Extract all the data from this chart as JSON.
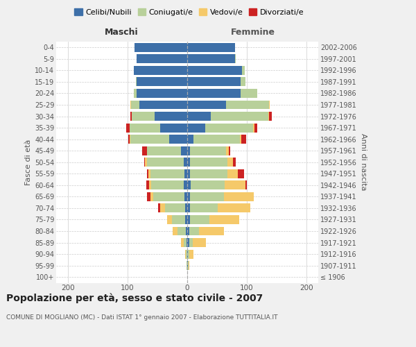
{
  "age_groups": [
    "100+",
    "95-99",
    "90-94",
    "85-89",
    "80-84",
    "75-79",
    "70-74",
    "65-69",
    "60-64",
    "55-59",
    "50-54",
    "45-49",
    "40-44",
    "35-39",
    "30-34",
    "25-29",
    "20-24",
    "15-19",
    "10-14",
    "5-9",
    "0-4"
  ],
  "birth_years": [
    "≤ 1906",
    "1907-1911",
    "1912-1916",
    "1917-1921",
    "1922-1926",
    "1927-1931",
    "1932-1936",
    "1937-1941",
    "1942-1946",
    "1947-1951",
    "1952-1956",
    "1957-1961",
    "1962-1966",
    "1967-1971",
    "1972-1976",
    "1977-1981",
    "1982-1986",
    "1987-1991",
    "1992-1996",
    "1997-2001",
    "2002-2006"
  ],
  "males_celibe": [
    0,
    0,
    0,
    1,
    2,
    3,
    4,
    5,
    6,
    5,
    6,
    10,
    30,
    45,
    55,
    80,
    85,
    85,
    90,
    85,
    88
  ],
  "males_coniug": [
    0,
    1,
    2,
    5,
    14,
    23,
    33,
    52,
    55,
    57,
    62,
    58,
    65,
    52,
    38,
    14,
    5,
    1,
    0,
    0,
    0
  ],
  "males_vedovo": [
    0,
    0,
    1,
    5,
    8,
    8,
    8,
    5,
    3,
    3,
    3,
    0,
    2,
    0,
    0,
    1,
    0,
    0,
    0,
    0,
    0
  ],
  "males_divorzio": [
    0,
    0,
    0,
    0,
    0,
    0,
    4,
    5,
    5,
    2,
    1,
    8,
    2,
    5,
    2,
    1,
    0,
    0,
    0,
    0,
    0
  ],
  "fem_nubile": [
    0,
    1,
    1,
    3,
    4,
    5,
    5,
    5,
    6,
    5,
    5,
    5,
    10,
    30,
    40,
    65,
    90,
    90,
    92,
    80,
    80
  ],
  "fem_coniug": [
    0,
    1,
    3,
    6,
    16,
    32,
    46,
    57,
    57,
    62,
    62,
    60,
    78,
    80,
    96,
    72,
    28,
    8,
    5,
    2,
    0
  ],
  "fem_vedova": [
    0,
    2,
    6,
    22,
    42,
    50,
    55,
    50,
    35,
    18,
    10,
    5,
    3,
    3,
    1,
    1,
    0,
    0,
    0,
    0,
    0
  ],
  "fem_divorzio": [
    0,
    0,
    0,
    0,
    0,
    0,
    0,
    0,
    2,
    10,
    5,
    2,
    8,
    5,
    5,
    1,
    0,
    0,
    0,
    0,
    0
  ],
  "colors": {
    "celibe": "#3d6fa8",
    "coniugato": "#b8d09a",
    "vedovo": "#f5c96a",
    "divorziato": "#cc2222"
  },
  "xlim": 220,
  "title": "Popolazione per età, sesso e stato civile - 2007",
  "subtitle": "COMUNE DI MOGLIANO (MC) - Dati ISTAT 1° gennaio 2007 - Elaborazione TUTTITALIA.IT",
  "ylabel_left": "Fasce di età",
  "ylabel_right": "Anni di nascita",
  "xlabel_left": "Maschi",
  "xlabel_right": "Femmine",
  "bg_color": "#f0f0f0",
  "plot_bg": "#ffffff",
  "legend_labels": [
    "Celibi/Nubili",
    "Coniugati/e",
    "Vedovi/e",
    "Divorziati/e"
  ]
}
